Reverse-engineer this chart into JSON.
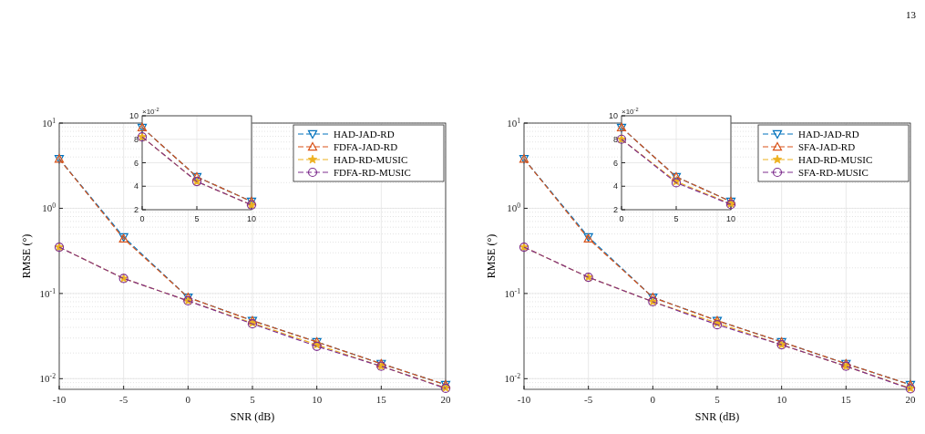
{
  "chart_data": [
    {
      "type": "line",
      "xlabel": "SNR (dB)",
      "ylabel": "RMSE (°)",
      "annotations": [
        "13"
      ],
      "x": [
        -10,
        -5,
        0,
        5,
        10,
        15,
        20
      ],
      "xlim": [
        -10,
        20
      ],
      "xticks": [
        -10,
        -5,
        0,
        5,
        10,
        15,
        20
      ],
      "ylim": [
        0.0075,
        10
      ],
      "yticks": [
        {
          "value": 0.01,
          "label": "10$^{-2}$"
        },
        {
          "value": 0.1,
          "label": "10$^{-1}$"
        },
        {
          "value": 1,
          "label": "10$^{0}$"
        },
        {
          "value": 10,
          "label": "10$^{1}$"
        }
      ],
      "log": true,
      "grid": true,
      "legend": "top right",
      "line_style": "dashed",
      "series": [
        {
          "name": "HAD-JAD-RD",
          "color": "#0072bd",
          "marker": "triangle-down",
          "values": [
            3.8,
            0.46,
            0.09,
            0.048,
            0.027,
            0.015,
            0.0085
          ]
        },
        {
          "name": "FDFA-JAD-RD",
          "color": "#d95319",
          "marker": "triangle",
          "values": [
            3.8,
            0.44,
            0.09,
            0.048,
            0.027,
            0.015,
            0.0085
          ]
        },
        {
          "name": "HAD-RD-MUSIC",
          "color": "#edb120",
          "marker": "star",
          "values": [
            0.35,
            0.15,
            0.082,
            0.045,
            0.025,
            0.014,
            0.0078
          ]
        },
        {
          "name": "FDFA-RD-MUSIC",
          "color": "#7e2f8e",
          "marker": "circle",
          "values": [
            0.35,
            0.15,
            0.082,
            0.044,
            0.024,
            0.014,
            0.0077
          ]
        }
      ]
    },
    {
      "type": "line",
      "annotations": [
        "×10$^{-2}$"
      ],
      "x": [
        0,
        5,
        10
      ],
      "xlim": [
        0,
        10
      ],
      "xticks": [
        0,
        5,
        10
      ],
      "ylim": [
        2,
        10
      ],
      "yticks": [
        2,
        4,
        6,
        8,
        10
      ],
      "grid": true,
      "line_style": "dashed",
      "series": [
        {
          "color": "#0072bd",
          "marker": "triangle-down",
          "values": [
            9,
            4.8,
            2.7
          ]
        },
        {
          "color": "#d95319",
          "marker": "triangle",
          "values": [
            9,
            4.8,
            2.7
          ]
        },
        {
          "color": "#edb120",
          "marker": "star",
          "values": [
            8.2,
            4.4,
            2.4
          ]
        },
        {
          "color": "#7e2f8e",
          "marker": "circle",
          "values": [
            8.2,
            4.4,
            2.4
          ]
        }
      ]
    },
    {
      "type": "line",
      "xlabel": "SNR (dB)",
      "ylabel": "RMSE (°)",
      "x": [
        -10,
        -5,
        0,
        5,
        10,
        15,
        20
      ],
      "xlim": [
        -10,
        20
      ],
      "xticks": [
        -10,
        -5,
        0,
        5,
        10,
        15,
        20
      ],
      "ylim": [
        0.0075,
        10
      ],
      "yticks": [
        {
          "value": 0.01,
          "label": "10$^{-2}$"
        },
        {
          "value": 0.1,
          "label": "10$^{-1}$"
        },
        {
          "value": 1,
          "label": "10$^{0}$"
        },
        {
          "value": 10,
          "label": "10$^{1}$"
        }
      ],
      "log": true,
      "grid": true,
      "legend": "top right",
      "line_style": "dashed",
      "series": [
        {
          "name": "HAD-JAD-RD",
          "color": "#0072bd",
          "marker": "triangle-down",
          "values": [
            3.8,
            0.46,
            0.09,
            0.048,
            0.027,
            0.015,
            0.0085
          ]
        },
        {
          "name": "SFA-JAD-RD",
          "color": "#d95319",
          "marker": "triangle",
          "values": [
            3.8,
            0.44,
            0.09,
            0.048,
            0.027,
            0.015,
            0.0085
          ]
        },
        {
          "name": "HAD-RD-MUSIC",
          "color": "#edb120",
          "marker": "star",
          "values": [
            0.35,
            0.155,
            0.08,
            0.045,
            0.025,
            0.014,
            0.0077
          ]
        },
        {
          "name": "SFA-RD-MUSIC",
          "color": "#7e2f8e",
          "marker": "circle",
          "values": [
            0.35,
            0.155,
            0.08,
            0.043,
            0.025,
            0.014,
            0.0076
          ]
        }
      ]
    },
    {
      "type": "line",
      "annotations": [
        "×10$^{-2}$"
      ],
      "x": [
        0,
        5,
        10
      ],
      "xlim": [
        0,
        10
      ],
      "xticks": [
        0,
        5,
        10
      ],
      "ylim": [
        2,
        10
      ],
      "yticks": [
        2,
        4,
        6,
        8,
        10
      ],
      "grid": true,
      "line_style": "dashed",
      "series": [
        {
          "color": "#0072bd",
          "marker": "triangle-down",
          "values": [
            9,
            4.8,
            2.7
          ]
        },
        {
          "color": "#d95319",
          "marker": "triangle",
          "values": [
            9,
            4.8,
            2.7
          ]
        },
        {
          "color": "#edb120",
          "marker": "star",
          "values": [
            8,
            4.4,
            2.5
          ]
        },
        {
          "color": "#7e2f8e",
          "marker": "circle",
          "values": [
            8,
            4.3,
            2.45
          ]
        }
      ]
    }
  ]
}
